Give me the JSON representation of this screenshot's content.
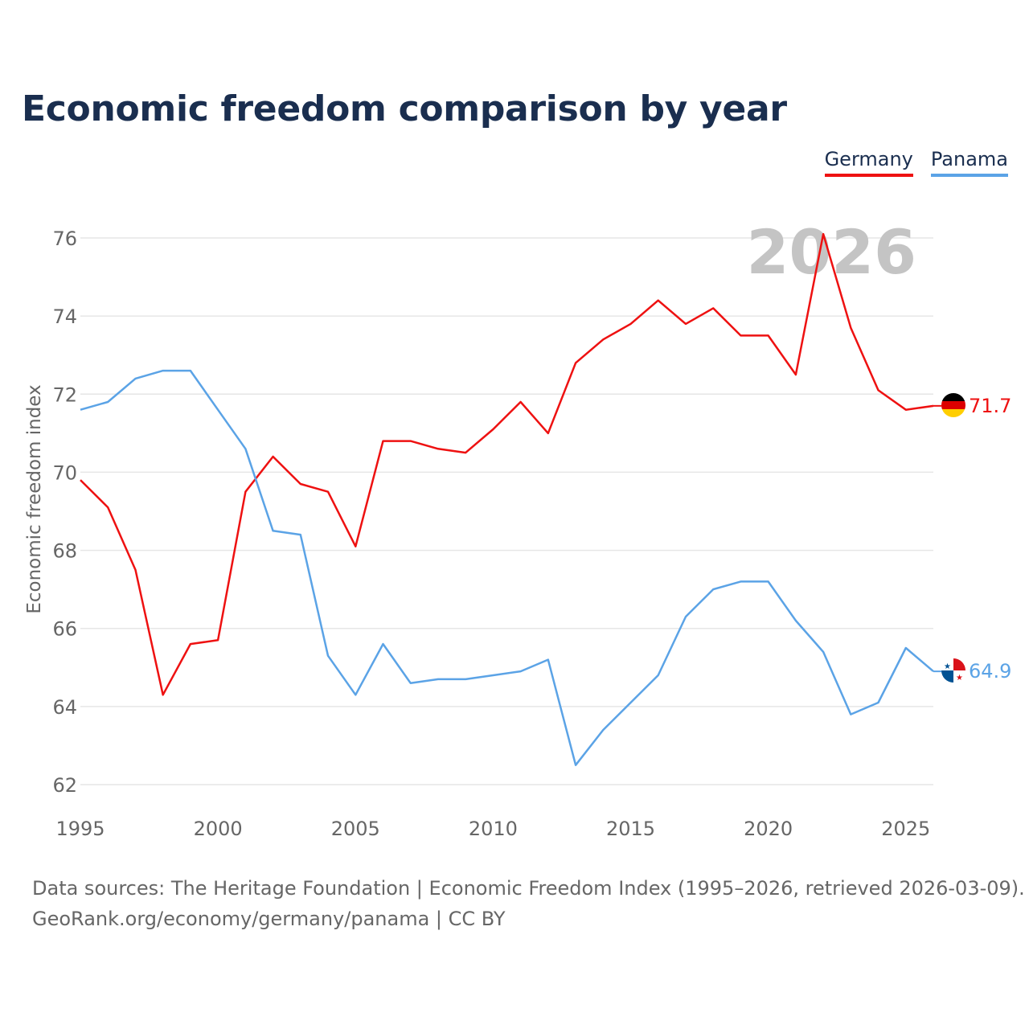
{
  "title": "Economic freedom comparison by year",
  "legend": [
    {
      "label": "Germany",
      "color": "#ee1111"
    },
    {
      "label": "Panama",
      "color": "#5ba3e6"
    }
  ],
  "watermark_year": "2026",
  "footer": {
    "line1": "Data sources: The Heritage Foundation | Economic Freedom Index (1995–2026, retrieved 2026-03-09).",
    "line2": "GeoRank.org/economy/germany/panama | CC BY"
  },
  "chart_data": {
    "type": "line",
    "title": "Economic freedom comparison by year",
    "xlabel": "",
    "ylabel": "Economic freedom index",
    "xlim": [
      1995,
      2026
    ],
    "ylim": [
      62,
      76
    ],
    "x_ticks": [
      1995,
      2000,
      2005,
      2010,
      2015,
      2020,
      2025
    ],
    "y_ticks": [
      62,
      64,
      66,
      68,
      70,
      72,
      74,
      76
    ],
    "grid": true,
    "legend_position": "top-right",
    "x": [
      1995,
      1996,
      1997,
      1998,
      1999,
      2000,
      2001,
      2002,
      2003,
      2004,
      2005,
      2006,
      2007,
      2008,
      2009,
      2010,
      2011,
      2012,
      2013,
      2014,
      2015,
      2016,
      2017,
      2018,
      2019,
      2020,
      2021,
      2022,
      2023,
      2024,
      2025,
      2026
    ],
    "series": [
      {
        "name": "Germany",
        "color": "#ee1111",
        "end_label": "71.7",
        "values": [
          69.8,
          69.1,
          67.5,
          64.3,
          65.6,
          65.7,
          69.5,
          70.4,
          69.7,
          69.5,
          68.1,
          70.8,
          70.8,
          70.6,
          70.5,
          71.1,
          71.8,
          71.0,
          72.8,
          73.4,
          73.8,
          74.4,
          73.8,
          74.2,
          73.5,
          73.5,
          72.5,
          76.1,
          73.7,
          72.1,
          71.6,
          71.7
        ]
      },
      {
        "name": "Panama",
        "color": "#5ba3e6",
        "end_label": "64.9",
        "values": [
          71.6,
          71.8,
          72.4,
          72.6,
          72.6,
          71.6,
          70.6,
          68.5,
          68.4,
          65.3,
          64.3,
          65.6,
          64.6,
          64.7,
          64.7,
          64.8,
          64.9,
          65.2,
          62.5,
          63.4,
          64.1,
          64.8,
          66.3,
          67.0,
          67.2,
          67.2,
          66.2,
          65.4,
          63.8,
          64.1,
          65.5,
          64.9
        ]
      }
    ]
  }
}
